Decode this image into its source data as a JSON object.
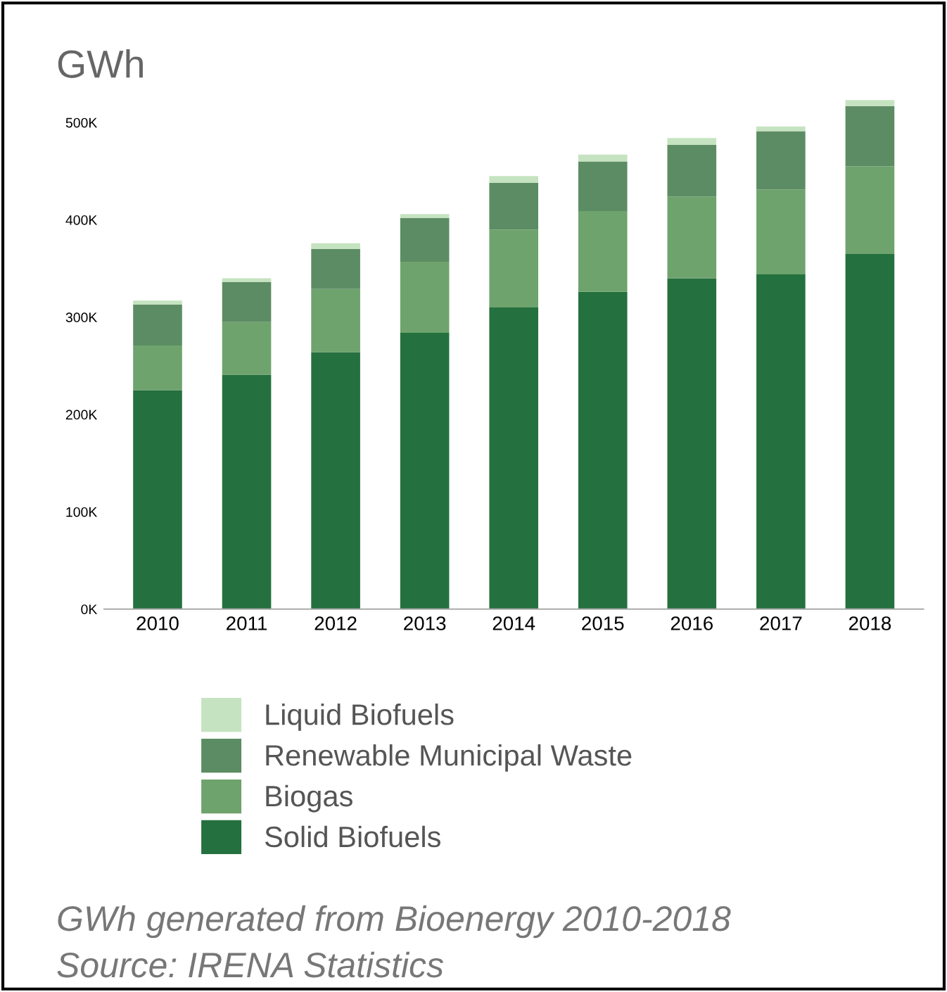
{
  "chart_data": {
    "type": "bar",
    "stacked": true,
    "ylabel": "GWh",
    "categories": [
      "2010",
      "2011",
      "2012",
      "2013",
      "2014",
      "2015",
      "2016",
      "2017",
      "2018"
    ],
    "series": [
      {
        "name": "Solid Biofuels",
        "color": "#25703f",
        "values": [
          225000,
          241000,
          264000,
          284000,
          310000,
          326000,
          340000,
          344000,
          365000
        ]
      },
      {
        "name": "Biogas",
        "color": "#6ea36d",
        "values": [
          46000,
          54000,
          65000,
          73000,
          80000,
          83000,
          84000,
          87000,
          90000
        ]
      },
      {
        "name": "Renewable Municipal Waste",
        "color": "#5c8c63",
        "values": [
          42000,
          41000,
          41000,
          45000,
          48000,
          51000,
          53000,
          60000,
          62000
        ]
      },
      {
        "name": "Liquid Biofuels",
        "color": "#c5e3c0",
        "values": [
          4000,
          4000,
          6000,
          4000,
          7000,
          7000,
          7000,
          5000,
          6000
        ]
      }
    ],
    "ylim": [
      0,
      525000
    ],
    "yticks": [
      {
        "value": 0,
        "label": "0K"
      },
      {
        "value": 100000,
        "label": "100K"
      },
      {
        "value": 200000,
        "label": "200K"
      },
      {
        "value": 300000,
        "label": "300K"
      },
      {
        "value": 400000,
        "label": "400K"
      },
      {
        "value": 500000,
        "label": "500K"
      }
    ],
    "grid": false,
    "legend": "bottom",
    "annotations": [
      "GWh generated from Bioenergy 2010-2018",
      "Source: IRENA Statistics"
    ]
  }
}
